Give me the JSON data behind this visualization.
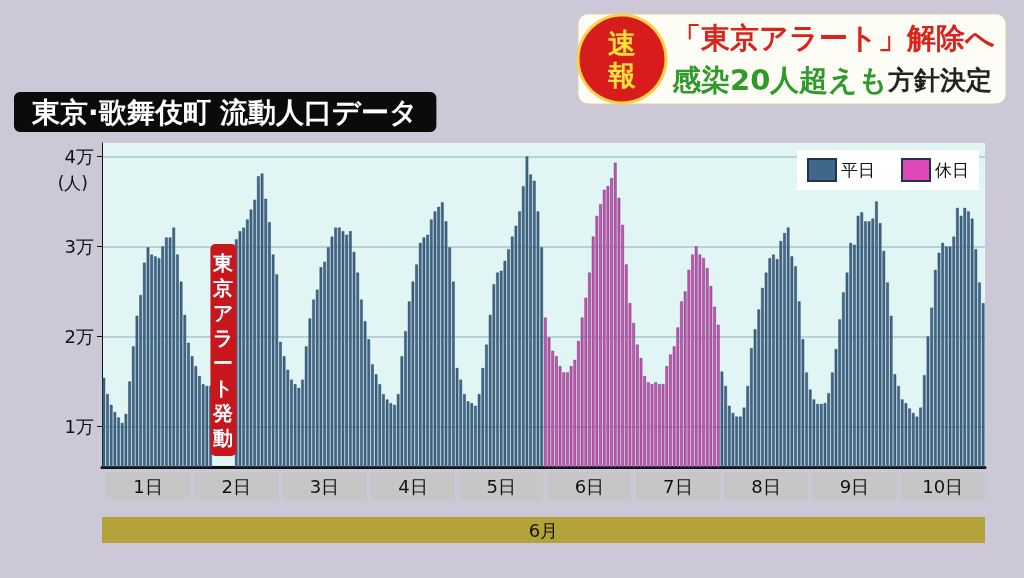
{
  "chart_data": {
    "type": "bar",
    "title": "東京·歌舞伎町 流動人口データ",
    "xlabel": "6月",
    "ylabel": "(人)",
    "annotations": [
      "速報",
      "「東京アラート」解除へ",
      "感染20人超えも",
      "方針決定",
      "東京アラート発動"
    ],
    "categories": [
      null,
      null,
      null,
      null,
      null,
      null,
      null,
      null,
      null,
      null,
      null,
      null,
      "1日",
      null,
      null,
      null,
      null,
      null,
      null,
      null,
      null,
      null,
      null,
      null,
      null,
      null,
      null,
      null,
      null,
      null,
      null,
      null,
      null,
      null,
      null,
      null,
      "2日",
      null,
      null,
      null,
      null,
      null,
      null,
      null,
      null,
      null,
      null,
      null,
      null,
      null,
      null,
      null,
      null,
      null,
      null,
      null,
      null,
      null,
      null,
      null,
      "3日",
      null,
      null,
      null,
      null,
      null,
      null,
      null,
      null,
      null,
      null,
      null,
      null,
      null,
      null,
      null,
      null,
      null,
      null,
      null,
      null,
      null,
      null,
      null,
      "4日",
      null,
      null,
      null,
      null,
      null,
      null,
      null,
      null,
      null,
      null,
      null,
      null,
      null,
      null,
      null,
      null,
      null,
      null,
      null,
      null,
      null,
      null,
      null,
      "5日",
      null,
      null,
      null,
      null,
      null,
      null,
      null,
      null,
      null,
      null,
      null,
      null,
      null,
      null,
      null,
      null,
      null,
      null,
      null,
      null,
      null,
      null,
      null,
      "6日",
      null,
      null,
      null,
      null,
      null,
      null,
      null,
      null,
      null,
      null,
      null,
      null,
      null,
      null,
      null,
      null,
      null,
      null,
      null,
      null,
      null,
      null,
      null,
      "7日",
      null,
      null,
      null,
      null,
      null,
      null,
      null,
      null,
      null,
      null,
      null,
      null,
      null,
      null,
      null,
      null,
      null,
      null,
      null,
      null,
      null,
      null,
      null,
      "8日",
      null,
      null,
      null,
      null,
      null,
      null,
      null,
      null,
      null,
      null,
      null,
      null,
      null,
      null,
      null,
      null,
      null,
      null,
      null,
      null,
      null,
      null,
      null,
      "9日",
      null,
      null,
      null,
      null,
      null,
      null,
      null,
      null,
      null,
      null,
      null,
      null,
      null,
      null,
      null,
      null,
      null,
      null,
      null,
      null,
      null,
      null,
      null,
      "10日",
      null,
      null,
      null,
      null,
      null,
      null,
      null,
      null,
      null,
      null,
      null
    ],
    "series": [
      {
        "name": "平日",
        "color": "#3f6789",
        "values": [
          1.54,
          1.36,
          1.24,
          1.16,
          1.1,
          1.04,
          1.14,
          1.5,
          1.89,
          2.23,
          2.46,
          2.82,
          2.99,
          2.91,
          2.89,
          2.87,
          3.0,
          3.1,
          3.1,
          3.21,
          2.91,
          2.61,
          2.24,
          1.93,
          1.78,
          1.67,
          1.56,
          1.47,
          1.45,
          1.45,
          null,
          null,
          null,
          null,
          null,
          null,
          3.08,
          3.17,
          3.21,
          3.3,
          3.41,
          3.52,
          3.78,
          3.81,
          3.53,
          3.27,
          2.91,
          2.69,
          1.94,
          1.78,
          1.63,
          1.52,
          1.47,
          1.43,
          1.52,
          1.89,
          2.2,
          2.41,
          2.52,
          2.77,
          2.83,
          2.99,
          3.11,
          3.21,
          3.21,
          3.17,
          3.13,
          3.17,
          2.94,
          2.71,
          2.41,
          2.17,
          1.97,
          1.69,
          1.58,
          1.47,
          1.36,
          1.3,
          1.26,
          1.24,
          1.36,
          1.78,
          2.06,
          2.39,
          2.61,
          2.8,
          3.04,
          3.1,
          3.13,
          3.3,
          3.39,
          3.44,
          3.49,
          3.28,
          2.99,
          2.61,
          1.65,
          1.52,
          1.36,
          1.28,
          1.26,
          1.23,
          1.36,
          1.65,
          1.91,
          2.24,
          2.58,
          2.71,
          2.73,
          2.84,
          2.97,
          3.11,
          3.23,
          3.39,
          3.67,
          4.0,
          3.8,
          3.73,
          3.39,
          2.99,
          null,
          null,
          null,
          null,
          null,
          null,
          null,
          null,
          null,
          null,
          null,
          null,
          null,
          null,
          null,
          null,
          null,
          null,
          null,
          null,
          null,
          null,
          null,
          null,
          null,
          null,
          null,
          null,
          null,
          null,
          null,
          null,
          null,
          null,
          null,
          null,
          null,
          null,
          null,
          null,
          null,
          null,
          null,
          null,
          null,
          null,
          null,
          null,
          1.61,
          1.45,
          1.23,
          1.15,
          1.11,
          1.11,
          1.21,
          1.45,
          1.87,
          2.08,
          2.3,
          2.54,
          2.71,
          2.87,
          2.91,
          2.86,
          3.06,
          3.15,
          3.21,
          2.89,
          2.78,
          2.39,
          1.97,
          1.6,
          1.41,
          1.3,
          1.25,
          1.25,
          1.26,
          1.37,
          1.6,
          1.86,
          2.19,
          2.49,
          2.71,
          3.04,
          3.02,
          3.34,
          3.38,
          3.28,
          3.28,
          3.31,
          3.5,
          3.26,
          2.95,
          2.6,
          2.23,
          1.58,
          1.45,
          1.3,
          1.26,
          1.2,
          1.15,
          1.11,
          1.21,
          1.57,
          2.0,
          2.32,
          2.74,
          2.93,
          3.04,
          3.0,
          3.0,
          3.11,
          3.43,
          3.34,
          3.43,
          3.39,
          3.31,
          2.97,
          2.6,
          2.37
        ]
      },
      {
        "name": "休日",
        "color": "#e048b8",
        "values": [
          null,
          null,
          null,
          null,
          null,
          null,
          null,
          null,
          null,
          null,
          null,
          null,
          null,
          null,
          null,
          null,
          null,
          null,
          null,
          null,
          null,
          null,
          null,
          null,
          null,
          null,
          null,
          null,
          null,
          null,
          null,
          null,
          null,
          null,
          null,
          null,
          null,
          null,
          null,
          null,
          null,
          null,
          null,
          null,
          null,
          null,
          null,
          null,
          null,
          null,
          null,
          null,
          null,
          null,
          null,
          null,
          null,
          null,
          null,
          null,
          null,
          null,
          null,
          null,
          null,
          null,
          null,
          null,
          null,
          null,
          null,
          null,
          null,
          null,
          null,
          null,
          null,
          null,
          null,
          null,
          null,
          null,
          null,
          null,
          null,
          null,
          null,
          null,
          null,
          null,
          null,
          null,
          null,
          null,
          null,
          null,
          null,
          null,
          null,
          null,
          null,
          null,
          null,
          null,
          null,
          null,
          null,
          null,
          null,
          null,
          null,
          null,
          null,
          null,
          null,
          null,
          null,
          null,
          null,
          null,
          2.21,
          1.99,
          1.84,
          1.78,
          1.67,
          1.6,
          1.6,
          1.67,
          1.74,
          1.95,
          2.21,
          2.43,
          2.71,
          3.11,
          3.34,
          3.47,
          3.63,
          3.67,
          3.76,
          3.93,
          3.54,
          3.24,
          2.8,
          2.37,
          2.15,
          1.91,
          1.76,
          1.56,
          1.49,
          1.47,
          1.49,
          1.47,
          1.47,
          1.67,
          1.8,
          1.89,
          2.1,
          2.39,
          2.5,
          2.74,
          2.91,
          3.0,
          2.91,
          2.87,
          2.76,
          2.56,
          2.33,
          2.13,
          null,
          null,
          null,
          null,
          null,
          null,
          null,
          null,
          null,
          null,
          null,
          null,
          null,
          null,
          null,
          null,
          null,
          null,
          null,
          null,
          null,
          null,
          null,
          null,
          null,
          null,
          null,
          null,
          null,
          null,
          null,
          null,
          null,
          null,
          null,
          null,
          null,
          null,
          null,
          null,
          null,
          null,
          null,
          null,
          null,
          null,
          null,
          null,
          null,
          null,
          null,
          null,
          null,
          null,
          null,
          null,
          null,
          null,
          null,
          null,
          null,
          null,
          null,
          null,
          null,
          null,
          null,
          null,
          null,
          null,
          null,
          null
        ]
      }
    ],
    "ylim": [
      0.55,
      4.15
    ],
    "yticks": [
      {
        "value": 1,
        "label": "1万"
      },
      {
        "value": 2,
        "label": "2万"
      },
      {
        "value": 3,
        "label": "3万"
      },
      {
        "value": 4,
        "label": "4万"
      }
    ],
    "grid": "y",
    "legend": "top right"
  }
}
